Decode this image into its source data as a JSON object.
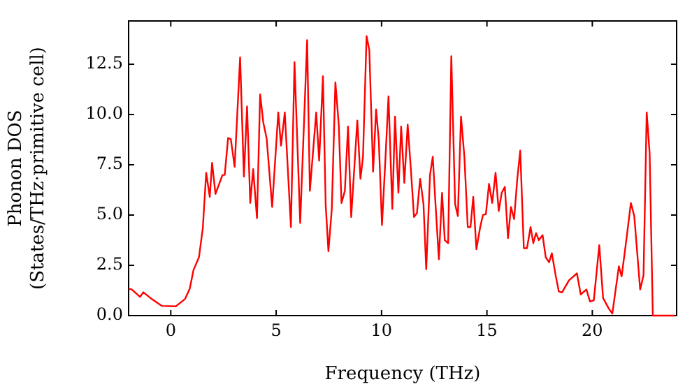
{
  "chart_data": {
    "type": "line",
    "xlabel": "Frequency (THz)",
    "ylabel": "Phonon DOS\n(States/THz·primitive cell)",
    "xlim": [
      -2,
      24
    ],
    "ylim": [
      0,
      14.65
    ],
    "xticks": [
      0,
      5,
      10,
      15,
      20
    ],
    "yticks": [
      {
        "value": 0,
        "label": "0.0"
      },
      {
        "value": 2.5,
        "label": "2.5"
      },
      {
        "value": 5,
        "label": "5.0"
      },
      {
        "value": 7.5,
        "label": "7.5"
      },
      {
        "value": 10,
        "label": "10.0"
      },
      {
        "value": 12.5,
        "label": "12.5"
      }
    ],
    "grid": false,
    "legend": false,
    "marker": "none",
    "line_style": "solid",
    "x": [
      -2,
      -1.85,
      -1.46,
      -1.3,
      -0.97,
      -0.42,
      0.24,
      0.68,
      0.9,
      1.08,
      1.34,
      1.52,
      1.68,
      1.85,
      1.96,
      2.12,
      2.45,
      2.56,
      2.72,
      2.85,
      3.03,
      3.29,
      3.47,
      3.62,
      3.77,
      3.91,
      4.09,
      4.24,
      4.39,
      4.55,
      4.81,
      5.1,
      5.23,
      5.41,
      5.7,
      5.87,
      6.14,
      6.47,
      6.6,
      6.9,
      7.04,
      7.22,
      7.35,
      7.48,
      7.64,
      7.81,
      7.97,
      8.1,
      8.26,
      8.41,
      8.56,
      8.85,
      9.0,
      9.12,
      9.29,
      9.42,
      9.6,
      9.74,
      9.87,
      10.02,
      10.18,
      10.33,
      10.51,
      10.64,
      10.8,
      10.93,
      11.08,
      11.24,
      11.39,
      11.54,
      11.68,
      11.83,
      11.99,
      12.12,
      12.3,
      12.43,
      12.56,
      12.72,
      12.87,
      13.0,
      13.16,
      13.31,
      13.49,
      13.62,
      13.77,
      13.93,
      14.09,
      14.22,
      14.35,
      14.5,
      14.68,
      14.81,
      14.95,
      15.1,
      15.25,
      15.41,
      15.56,
      15.7,
      15.85,
      16.0,
      16.14,
      16.29,
      16.44,
      16.58,
      16.75,
      16.9,
      17.07,
      17.2,
      17.33,
      17.46,
      17.64,
      17.79,
      17.95,
      18.08,
      18.26,
      18.41,
      18.56,
      18.89,
      19.27,
      19.45,
      19.72,
      19.89,
      20.07,
      20.33,
      20.51,
      20.78,
      20.95,
      21.26,
      21.39,
      21.57,
      21.83,
      21.99,
      22.27,
      22.43,
      22.58,
      22.72,
      22.87,
      23.9
    ],
    "series": [
      {
        "color": "#ff0000",
        "values": [
          1.34,
          1.3,
          0.93,
          1.16,
          0.88,
          0.48,
          0.46,
          0.83,
          1.34,
          2.27,
          2.91,
          4.35,
          7.1,
          5.9,
          7.6,
          6.05,
          6.98,
          7.0,
          8.83,
          8.77,
          7.4,
          12.84,
          6.91,
          10.4,
          5.6,
          7.28,
          4.84,
          11.0,
          9.6,
          8.8,
          5.4,
          10.1,
          8.45,
          10.1,
          4.4,
          12.6,
          4.6,
          13.7,
          6.2,
          10.1,
          7.7,
          11.9,
          5.5,
          3.2,
          5.3,
          11.6,
          9.5,
          5.6,
          6.2,
          9.4,
          4.9,
          9.7,
          6.8,
          7.9,
          13.9,
          13.2,
          7.15,
          10.25,
          8.7,
          4.5,
          7.7,
          10.9,
          5.3,
          9.9,
          6.1,
          9.4,
          6.6,
          9.5,
          7.3,
          4.9,
          5.1,
          6.8,
          5.55,
          2.3,
          7.0,
          7.9,
          5.55,
          2.8,
          6.1,
          3.75,
          3.6,
          12.9,
          5.55,
          4.95,
          9.9,
          7.9,
          4.4,
          4.4,
          5.9,
          3.3,
          4.4,
          5.0,
          5.05,
          6.55,
          5.6,
          7.1,
          5.2,
          6.1,
          6.4,
          3.85,
          5.4,
          4.8,
          6.8,
          8.2,
          3.35,
          3.35,
          4.4,
          3.6,
          4.1,
          3.75,
          4.0,
          2.9,
          2.65,
          3.1,
          2.0,
          1.2,
          1.15,
          1.75,
          2.1,
          1.05,
          1.3,
          0.7,
          0.76,
          3.5,
          0.87,
          0.35,
          0.1,
          2.45,
          1.95,
          3.4,
          5.6,
          4.95,
          1.3,
          2.0,
          10.1,
          8.05,
          0,
          0
        ]
      }
    ]
  }
}
